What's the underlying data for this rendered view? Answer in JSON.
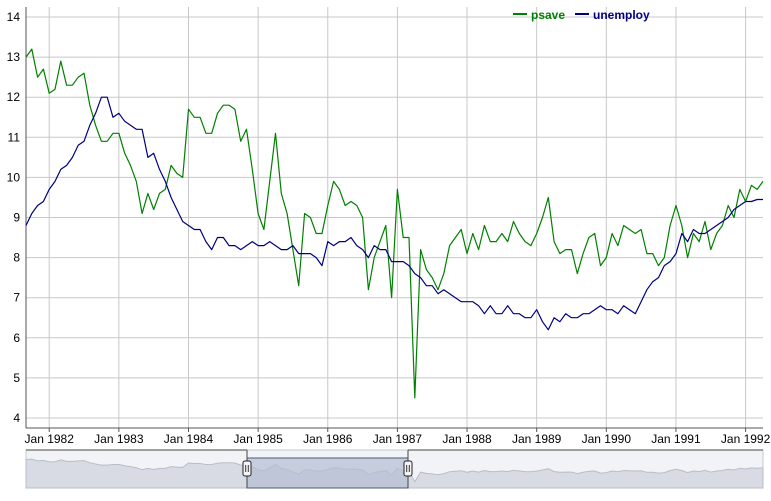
{
  "chart_data": {
    "type": "line",
    "title": "",
    "xlabel": "",
    "ylabel": "",
    "x_range": [
      "1981-09",
      "1992-04"
    ],
    "ylim": [
      3.75,
      14.25
    ],
    "grid": true,
    "legend_position": "top-right",
    "x_tick_labels": [
      "Jan 1982",
      "Jan 1983",
      "Jan 1984",
      "Jan 1985",
      "Jan 1986",
      "Jan 1987",
      "Jan 1988",
      "Jan 1989",
      "Jan 1990",
      "Jan 1991",
      "Jan 1992"
    ],
    "y_tick_labels": [
      "4",
      "5",
      "6",
      "7",
      "8",
      "9",
      "10",
      "11",
      "12",
      "13",
      "14"
    ],
    "series": [
      {
        "name": "psave",
        "color": "#008000",
        "points": [
          [
            "1981-09",
            13.0
          ],
          [
            "1981-10",
            13.2
          ],
          [
            "1981-11",
            12.5
          ],
          [
            "1981-12",
            12.7
          ],
          [
            "1982-01",
            12.1
          ],
          [
            "1982-02",
            12.2
          ],
          [
            "1982-03",
            12.9
          ],
          [
            "1982-04",
            12.3
          ],
          [
            "1982-05",
            12.3
          ],
          [
            "1982-06",
            12.5
          ],
          [
            "1982-07",
            12.6
          ],
          [
            "1982-08",
            11.8
          ],
          [
            "1982-09",
            11.3
          ],
          [
            "1982-10",
            10.9
          ],
          [
            "1982-11",
            10.9
          ],
          [
            "1982-12",
            11.1
          ],
          [
            "1983-01",
            11.1
          ],
          [
            "1983-02",
            10.6
          ],
          [
            "1983-03",
            10.3
          ],
          [
            "1983-04",
            9.9
          ],
          [
            "1983-05",
            9.1
          ],
          [
            "1983-06",
            9.6
          ],
          [
            "1983-07",
            9.2
          ],
          [
            "1983-08",
            9.6
          ],
          [
            "1983-09",
            9.7
          ],
          [
            "1983-10",
            10.3
          ],
          [
            "1983-11",
            10.1
          ],
          [
            "1983-12",
            10.0
          ],
          [
            "1984-01",
            11.7
          ],
          [
            "1984-02",
            11.5
          ],
          [
            "1984-03",
            11.5
          ],
          [
            "1984-04",
            11.1
          ],
          [
            "1984-05",
            11.1
          ],
          [
            "1984-06",
            11.6
          ],
          [
            "1984-07",
            11.8
          ],
          [
            "1984-08",
            11.8
          ],
          [
            "1984-09",
            11.7
          ],
          [
            "1984-10",
            10.9
          ],
          [
            "1984-11",
            11.2
          ],
          [
            "1984-12",
            10.2
          ],
          [
            "1985-01",
            9.1
          ],
          [
            "1985-02",
            8.7
          ],
          [
            "1985-03",
            9.9
          ],
          [
            "1985-04",
            11.1
          ],
          [
            "1985-05",
            9.6
          ],
          [
            "1985-06",
            9.1
          ],
          [
            "1985-07",
            8.2
          ],
          [
            "1985-08",
            7.3
          ],
          [
            "1985-09",
            9.1
          ],
          [
            "1985-10",
            9.0
          ],
          [
            "1985-11",
            8.6
          ],
          [
            "1985-12",
            8.6
          ],
          [
            "1986-01",
            9.3
          ],
          [
            "1986-02",
            9.9
          ],
          [
            "1986-03",
            9.7
          ],
          [
            "1986-04",
            9.3
          ],
          [
            "1986-05",
            9.4
          ],
          [
            "1986-06",
            9.3
          ],
          [
            "1986-07",
            9.0
          ],
          [
            "1986-08",
            7.2
          ],
          [
            "1986-09",
            8.0
          ],
          [
            "1986-10",
            8.4
          ],
          [
            "1986-11",
            8.8
          ],
          [
            "1986-12",
            7.0
          ],
          [
            "1987-01",
            9.7
          ],
          [
            "1987-02",
            8.5
          ],
          [
            "1987-03",
            8.5
          ],
          [
            "1987-04",
            4.5
          ],
          [
            "1987-05",
            8.2
          ],
          [
            "1987-06",
            7.7
          ],
          [
            "1987-07",
            7.5
          ],
          [
            "1987-08",
            7.2
          ],
          [
            "1987-09",
            7.6
          ],
          [
            "1987-10",
            8.3
          ],
          [
            "1987-11",
            8.5
          ],
          [
            "1987-12",
            8.7
          ],
          [
            "1988-01",
            8.1
          ],
          [
            "1988-02",
            8.6
          ],
          [
            "1988-03",
            8.2
          ],
          [
            "1988-04",
            8.8
          ],
          [
            "1988-05",
            8.4
          ],
          [
            "1988-06",
            8.4
          ],
          [
            "1988-07",
            8.6
          ],
          [
            "1988-08",
            8.4
          ],
          [
            "1988-09",
            8.9
          ],
          [
            "1988-10",
            8.6
          ],
          [
            "1988-11",
            8.4
          ],
          [
            "1988-12",
            8.3
          ],
          [
            "1989-01",
            8.6
          ],
          [
            "1989-02",
            9.0
          ],
          [
            "1989-03",
            9.5
          ],
          [
            "1989-04",
            8.4
          ],
          [
            "1989-05",
            8.1
          ],
          [
            "1989-06",
            8.2
          ],
          [
            "1989-07",
            8.2
          ],
          [
            "1989-08",
            7.6
          ],
          [
            "1989-09",
            8.1
          ],
          [
            "1989-10",
            8.5
          ],
          [
            "1989-11",
            8.6
          ],
          [
            "1989-12",
            7.8
          ],
          [
            "1990-01",
            8.0
          ],
          [
            "1990-02",
            8.6
          ],
          [
            "1990-03",
            8.3
          ],
          [
            "1990-04",
            8.8
          ],
          [
            "1990-05",
            8.7
          ],
          [
            "1990-06",
            8.6
          ],
          [
            "1990-07",
            8.7
          ],
          [
            "1990-08",
            8.1
          ],
          [
            "1990-09",
            8.1
          ],
          [
            "1990-10",
            7.8
          ],
          [
            "1990-11",
            8.0
          ],
          [
            "1990-12",
            8.8
          ],
          [
            "1991-01",
            9.3
          ],
          [
            "1991-02",
            8.8
          ],
          [
            "1991-03",
            8.0
          ],
          [
            "1991-04",
            8.6
          ],
          [
            "1991-05",
            8.4
          ],
          [
            "1991-06",
            8.9
          ],
          [
            "1991-07",
            8.2
          ],
          [
            "1991-08",
            8.6
          ],
          [
            "1991-09",
            8.8
          ],
          [
            "1991-10",
            9.3
          ],
          [
            "1991-11",
            9.0
          ],
          [
            "1991-12",
            9.7
          ],
          [
            "1992-01",
            9.4
          ],
          [
            "1992-02",
            9.8
          ],
          [
            "1992-03",
            9.7
          ],
          [
            "1992-04",
            9.9
          ]
        ]
      },
      {
        "name": "unemploy",
        "color": "#000080",
        "points": [
          [
            "1981-09",
            8.8
          ],
          [
            "1981-10",
            9.1
          ],
          [
            "1981-11",
            9.3
          ],
          [
            "1981-12",
            9.4
          ],
          [
            "1982-01",
            9.7
          ],
          [
            "1982-02",
            9.9
          ],
          [
            "1982-03",
            10.2
          ],
          [
            "1982-04",
            10.3
          ],
          [
            "1982-05",
            10.5
          ],
          [
            "1982-06",
            10.8
          ],
          [
            "1982-07",
            10.9
          ],
          [
            "1982-08",
            11.3
          ],
          [
            "1982-09",
            11.6
          ],
          [
            "1982-10",
            12.0
          ],
          [
            "1982-11",
            12.0
          ],
          [
            "1982-12",
            11.5
          ],
          [
            "1983-01",
            11.6
          ],
          [
            "1983-02",
            11.4
          ],
          [
            "1983-03",
            11.3
          ],
          [
            "1983-04",
            11.2
          ],
          [
            "1983-05",
            11.2
          ],
          [
            "1983-06",
            10.5
          ],
          [
            "1983-07",
            10.6
          ],
          [
            "1983-08",
            10.2
          ],
          [
            "1983-09",
            9.9
          ],
          [
            "1983-10",
            9.5
          ],
          [
            "1983-11",
            9.2
          ],
          [
            "1983-12",
            8.9
          ],
          [
            "1984-01",
            8.8
          ],
          [
            "1984-02",
            8.7
          ],
          [
            "1984-03",
            8.7
          ],
          [
            "1984-04",
            8.4
          ],
          [
            "1984-05",
            8.2
          ],
          [
            "1984-06",
            8.5
          ],
          [
            "1984-07",
            8.5
          ],
          [
            "1984-08",
            8.3
          ],
          [
            "1984-09",
            8.3
          ],
          [
            "1984-10",
            8.2
          ],
          [
            "1984-11",
            8.3
          ],
          [
            "1984-12",
            8.4
          ],
          [
            "1985-01",
            8.3
          ],
          [
            "1985-02",
            8.3
          ],
          [
            "1985-03",
            8.4
          ],
          [
            "1985-04",
            8.3
          ],
          [
            "1985-05",
            8.2
          ],
          [
            "1985-06",
            8.2
          ],
          [
            "1985-07",
            8.3
          ],
          [
            "1985-08",
            8.1
          ],
          [
            "1985-09",
            8.1
          ],
          [
            "1985-10",
            8.1
          ],
          [
            "1985-11",
            8.0
          ],
          [
            "1985-12",
            7.8
          ],
          [
            "1986-01",
            8.4
          ],
          [
            "1986-02",
            8.3
          ],
          [
            "1986-03",
            8.4
          ],
          [
            "1986-04",
            8.4
          ],
          [
            "1986-05",
            8.5
          ],
          [
            "1986-06",
            8.3
          ],
          [
            "1986-07",
            8.2
          ],
          [
            "1986-08",
            8.0
          ],
          [
            "1986-09",
            8.3
          ],
          [
            "1986-10",
            8.2
          ],
          [
            "1986-11",
            8.2
          ],
          [
            "1986-12",
            7.9
          ],
          [
            "1987-01",
            7.9
          ],
          [
            "1987-02",
            7.9
          ],
          [
            "1987-03",
            7.8
          ],
          [
            "1987-04",
            7.6
          ],
          [
            "1987-05",
            7.5
          ],
          [
            "1987-06",
            7.3
          ],
          [
            "1987-07",
            7.3
          ],
          [
            "1987-08",
            7.1
          ],
          [
            "1987-09",
            7.2
          ],
          [
            "1987-10",
            7.1
          ],
          [
            "1987-11",
            7.0
          ],
          [
            "1987-12",
            6.9
          ],
          [
            "1988-01",
            6.9
          ],
          [
            "1988-02",
            6.9
          ],
          [
            "1988-03",
            6.8
          ],
          [
            "1988-04",
            6.6
          ],
          [
            "1988-05",
            6.8
          ],
          [
            "1988-06",
            6.6
          ],
          [
            "1988-07",
            6.6
          ],
          [
            "1988-08",
            6.8
          ],
          [
            "1988-09",
            6.6
          ],
          [
            "1988-10",
            6.6
          ],
          [
            "1988-11",
            6.5
          ],
          [
            "1988-12",
            6.5
          ],
          [
            "1989-01",
            6.7
          ],
          [
            "1989-02",
            6.4
          ],
          [
            "1989-03",
            6.2
          ],
          [
            "1989-04",
            6.5
          ],
          [
            "1989-05",
            6.4
          ],
          [
            "1989-06",
            6.6
          ],
          [
            "1989-07",
            6.5
          ],
          [
            "1989-08",
            6.5
          ],
          [
            "1989-09",
            6.6
          ],
          [
            "1989-10",
            6.6
          ],
          [
            "1989-11",
            6.7
          ],
          [
            "1989-12",
            6.8
          ],
          [
            "1990-01",
            6.7
          ],
          [
            "1990-02",
            6.7
          ],
          [
            "1990-03",
            6.6
          ],
          [
            "1990-04",
            6.8
          ],
          [
            "1990-05",
            6.7
          ],
          [
            "1990-06",
            6.6
          ],
          [
            "1990-07",
            6.9
          ],
          [
            "1990-08",
            7.2
          ],
          [
            "1990-09",
            7.4
          ],
          [
            "1990-10",
            7.5
          ],
          [
            "1990-11",
            7.8
          ],
          [
            "1990-12",
            7.9
          ],
          [
            "1991-01",
            8.1
          ],
          [
            "1991-02",
            8.6
          ],
          [
            "1991-03",
            8.4
          ],
          [
            "1991-04",
            8.7
          ],
          [
            "1991-05",
            8.6
          ],
          [
            "1991-06",
            8.6
          ],
          [
            "1991-07",
            8.7
          ],
          [
            "1991-08",
            8.8
          ],
          [
            "1991-09",
            8.9
          ],
          [
            "1991-10",
            9.0
          ],
          [
            "1991-11",
            9.2
          ],
          [
            "1991-12",
            9.3
          ],
          [
            "1992-01",
            9.4
          ],
          [
            "1992-02",
            9.4
          ],
          [
            "1992-03",
            9.45
          ],
          [
            "1992-04",
            9.45
          ]
        ]
      }
    ]
  },
  "navigator": {
    "background": "#f2f3f7",
    "selection_fill": "#b4bed1",
    "handle_color": "#222222"
  }
}
